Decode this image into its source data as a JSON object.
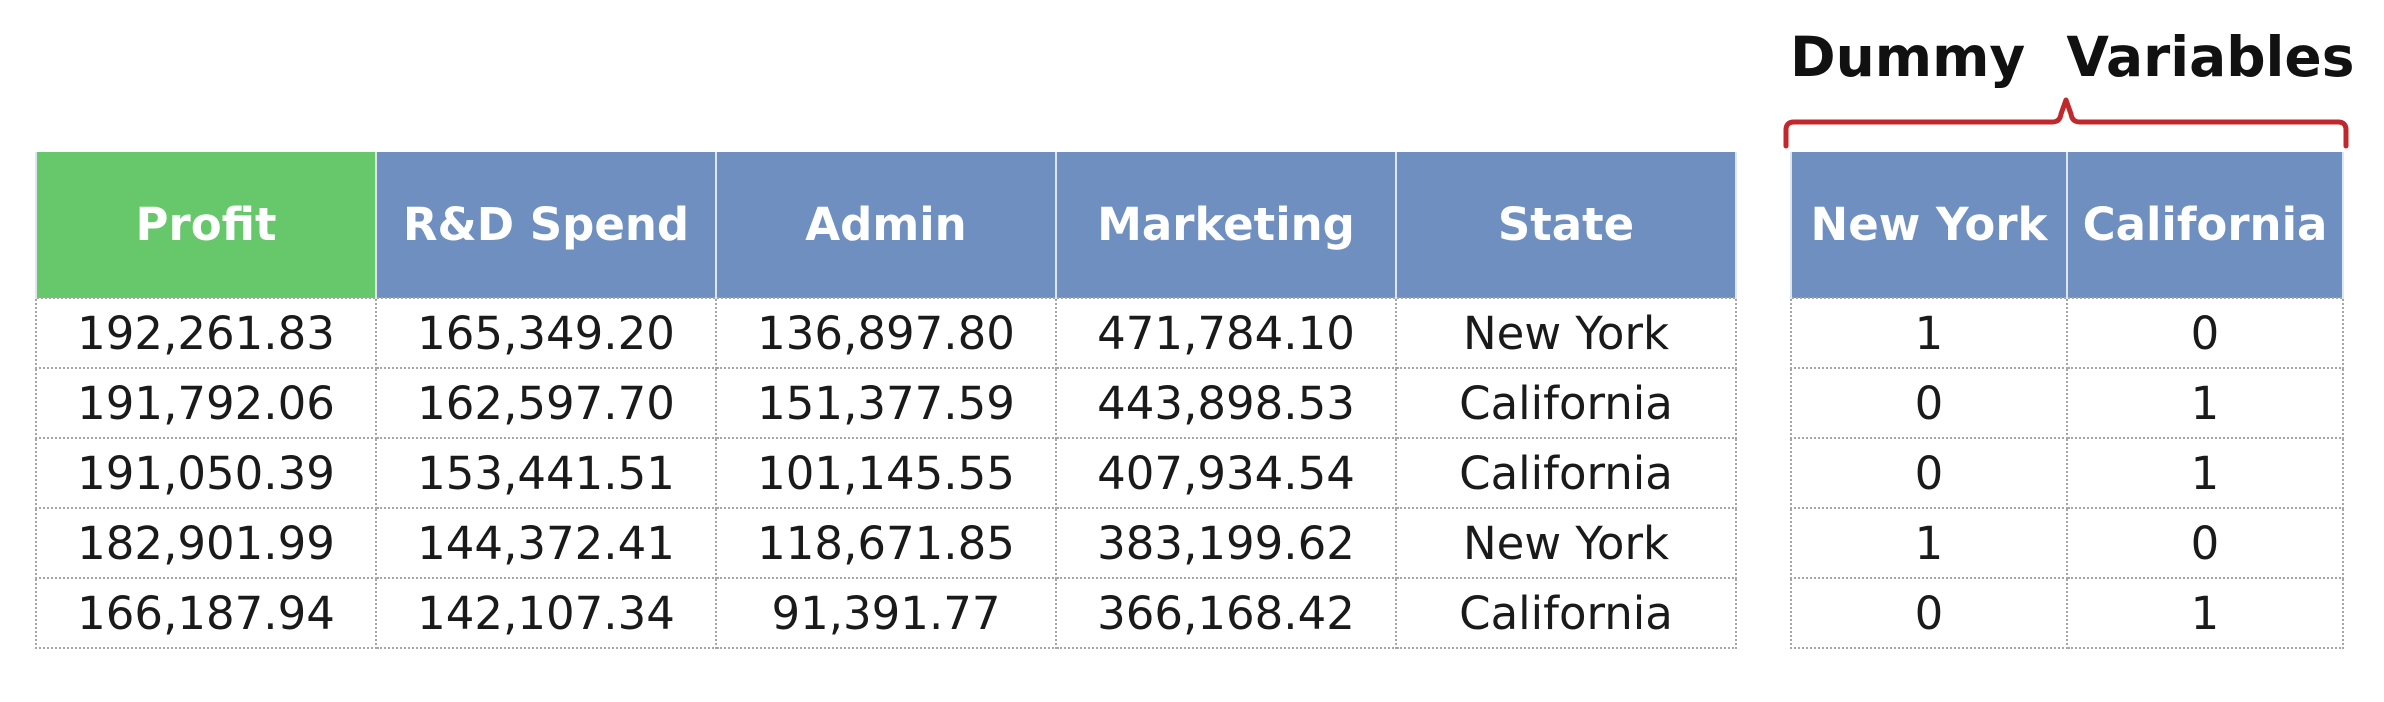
{
  "dummy_title": "Dummy Variables",
  "colors": {
    "profit_header": "#67c76b",
    "header": "#6f8fc0",
    "brace": "#c0282b",
    "header_text": "#ffffff",
    "cell_text": "#1a1a1a"
  },
  "main_table": {
    "headers": [
      "Profit",
      "R&D Spend",
      "Admin",
      "Marketing",
      "State"
    ],
    "rows": [
      [
        "192,261.83",
        "165,349.20",
        "136,897.80",
        "471,784.10",
        "New York"
      ],
      [
        "191,792.06",
        "162,597.70",
        "151,377.59",
        "443,898.53",
        "California"
      ],
      [
        "191,050.39",
        "153,441.51",
        "101,145.55",
        "407,934.54",
        "California"
      ],
      [
        "182,901.99",
        "144,372.41",
        "118,671.85",
        "383,199.62",
        "New York"
      ],
      [
        "166,187.94",
        "142,107.34",
        "91,391.77",
        "366,168.42",
        "California"
      ]
    ]
  },
  "dummy_table": {
    "headers": [
      "New York",
      "California"
    ],
    "rows": [
      [
        "1",
        "0"
      ],
      [
        "0",
        "1"
      ],
      [
        "0",
        "1"
      ],
      [
        "1",
        "0"
      ],
      [
        "0",
        "1"
      ]
    ]
  }
}
